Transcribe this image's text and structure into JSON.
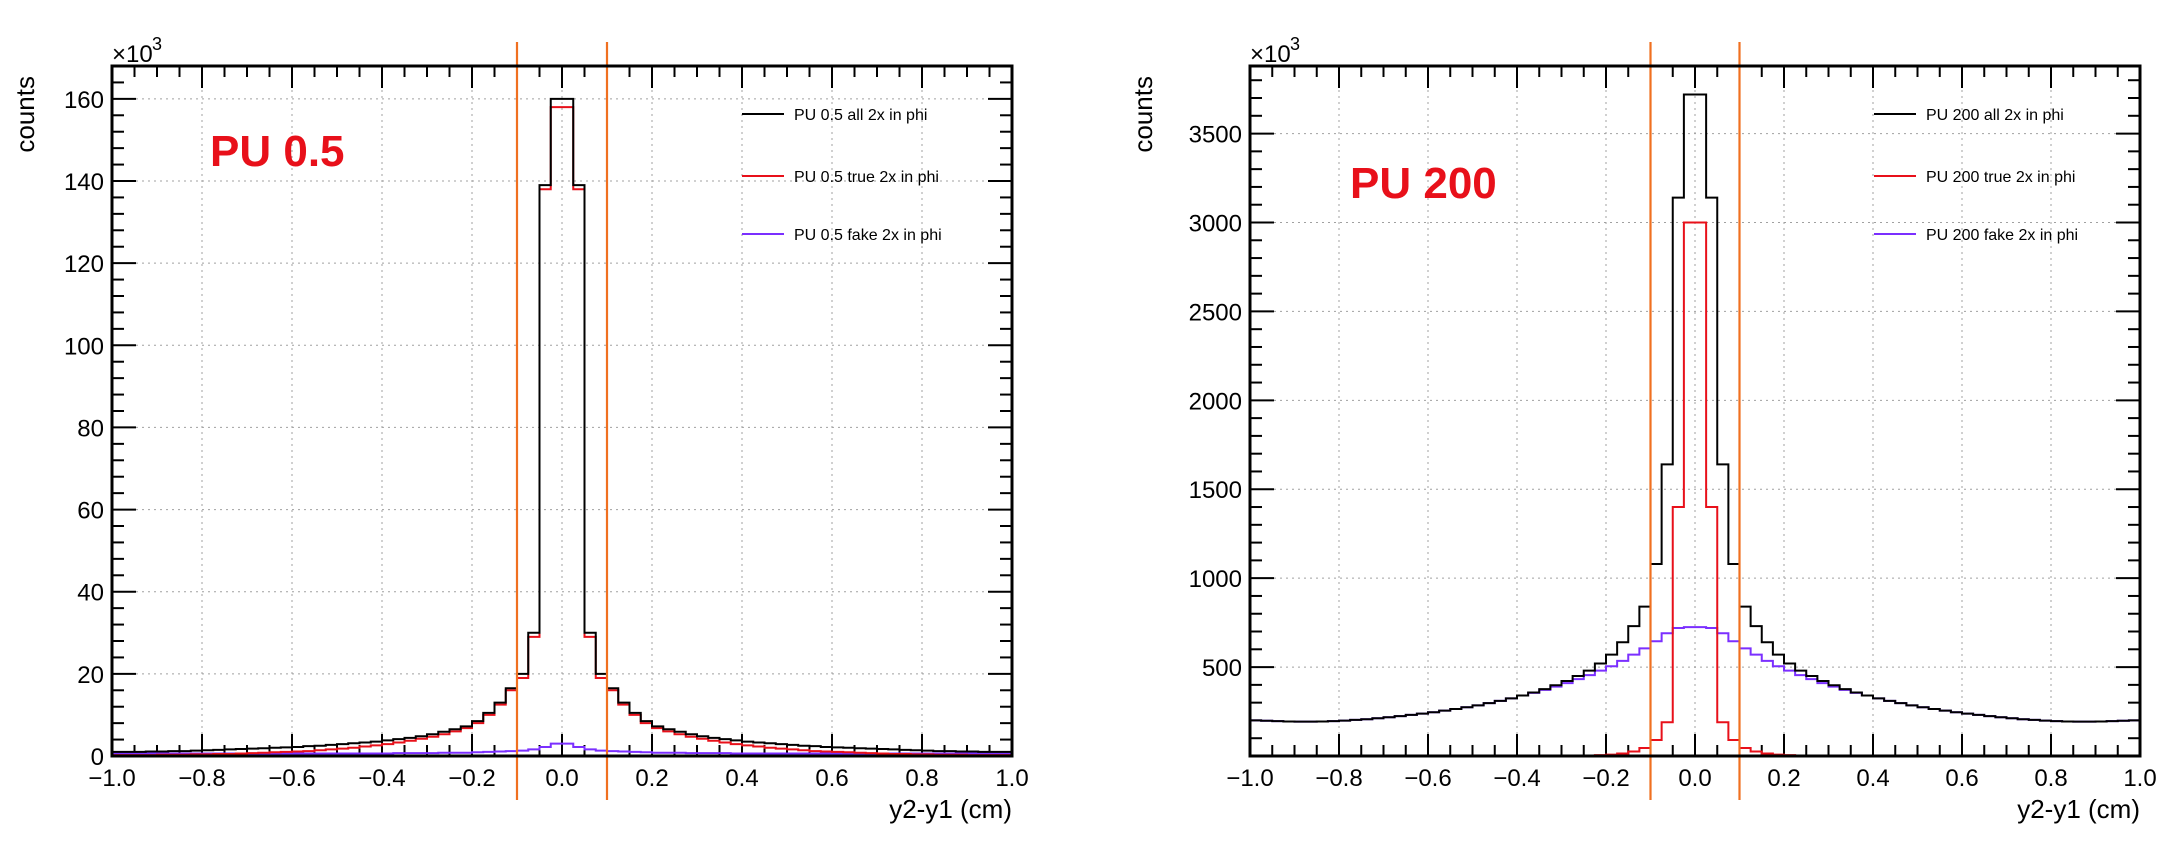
{
  "chart_data": [
    {
      "type": "histogram",
      "annotation": "PU 0.5",
      "ylabel": "counts",
      "xlabel": "y2-y1 (cm)",
      "y_multiplier": "×10",
      "y_multiplier_exp": "3",
      "xlim": [
        -1.0,
        1.0
      ],
      "ylim": [
        0,
        168
      ],
      "x_ticks": [
        "−1.0",
        "−0.8",
        "−0.6",
        "−0.4",
        "−0.2",
        "0.0",
        "0.2",
        "0.4",
        "0.6",
        "0.8",
        "1.0"
      ],
      "y_ticks": [
        {
          "value": 0,
          "label": "0"
        },
        {
          "value": 20,
          "label": "20"
        },
        {
          "value": 40,
          "label": "40"
        },
        {
          "value": 60,
          "label": "60"
        },
        {
          "value": 80,
          "label": "80"
        },
        {
          "value": 100,
          "label": "100"
        },
        {
          "value": 120,
          "label": "120"
        },
        {
          "value": 140,
          "label": "140"
        },
        {
          "value": 160,
          "label": "160"
        }
      ],
      "grid": true,
      "legend_position": "top-right",
      "cut_lines": [
        -0.1,
        0.1
      ],
      "bin_width": 0.025,
      "series": [
        {
          "name": "PU 0.5 all 2x in phi",
          "color": "#000000",
          "values": [
            1.0,
            1.0,
            1.0,
            1.1,
            1.1,
            1.2,
            1.2,
            1.3,
            1.4,
            1.5,
            1.6,
            1.7,
            1.8,
            1.9,
            2.0,
            2.1,
            2.2,
            2.4,
            2.5,
            2.7,
            2.9,
            3.1,
            3.3,
            3.5,
            3.8,
            4.1,
            4.4,
            4.8,
            5.3,
            5.9,
            6.5,
            7.2,
            8.5,
            10.5,
            13.0,
            16.5,
            20.0,
            30.0,
            139.0,
            160.0,
            160.0,
            139.0,
            30.0,
            20.0,
            16.5,
            13.0,
            10.5,
            8.5,
            7.2,
            6.5,
            5.9,
            5.3,
            4.8,
            4.4,
            4.1,
            3.8,
            3.5,
            3.3,
            3.1,
            2.9,
            2.7,
            2.5,
            2.4,
            2.2,
            2.1,
            2.0,
            1.9,
            1.8,
            1.7,
            1.6,
            1.5,
            1.4,
            1.3,
            1.2,
            1.2,
            1.1,
            1.1,
            1.0,
            1.0,
            1.0
          ]
        },
        {
          "name": "PU 0.5 true 2x in phi",
          "color": "#e8101a",
          "values": [
            0.2,
            0.2,
            0.2,
            0.2,
            0.3,
            0.3,
            0.3,
            0.4,
            0.4,
            0.5,
            0.5,
            0.6,
            0.7,
            0.8,
            0.9,
            1.0,
            1.1,
            1.2,
            1.4,
            1.6,
            1.8,
            2.0,
            2.3,
            2.6,
            2.9,
            3.3,
            3.7,
            4.2,
            4.7,
            5.3,
            6.0,
            6.8,
            8.0,
            10.0,
            12.5,
            16.0,
            19.0,
            29.0,
            138.0,
            158.0,
            158.0,
            138.0,
            29.0,
            19.0,
            16.0,
            12.5,
            10.0,
            8.0,
            6.8,
            6.0,
            5.3,
            4.7,
            4.2,
            3.7,
            3.3,
            2.9,
            2.6,
            2.3,
            2.0,
            1.8,
            1.6,
            1.4,
            1.2,
            1.1,
            1.0,
            0.9,
            0.8,
            0.7,
            0.6,
            0.5,
            0.5,
            0.4,
            0.4,
            0.3,
            0.3,
            0.3,
            0.2,
            0.2,
            0.2,
            0.2
          ]
        },
        {
          "name": "PU 0.5 fake 2x in phi",
          "color": "#7b2fff",
          "values": [
            0.6,
            0.6,
            0.6,
            0.6,
            0.6,
            0.6,
            0.6,
            0.6,
            0.6,
            0.6,
            0.6,
            0.6,
            0.6,
            0.6,
            0.6,
            0.6,
            0.6,
            0.6,
            0.6,
            0.6,
            0.6,
            0.6,
            0.6,
            0.6,
            0.6,
            0.7,
            0.7,
            0.7,
            0.7,
            0.8,
            0.8,
            0.8,
            0.9,
            1.0,
            1.1,
            1.2,
            1.3,
            1.6,
            2.2,
            3.0,
            3.0,
            2.2,
            1.6,
            1.3,
            1.2,
            1.1,
            1.0,
            0.9,
            0.8,
            0.8,
            0.8,
            0.7,
            0.7,
            0.7,
            0.7,
            0.6,
            0.6,
            0.6,
            0.6,
            0.6,
            0.6,
            0.6,
            0.6,
            0.6,
            0.6,
            0.6,
            0.6,
            0.6,
            0.6,
            0.6,
            0.6,
            0.6,
            0.6,
            0.6,
            0.6,
            0.6,
            0.6,
            0.6,
            0.6,
            0.6
          ]
        }
      ]
    },
    {
      "type": "histogram",
      "annotation": "PU 200",
      "ylabel": "counts",
      "xlabel": "y2-y1 (cm)",
      "y_multiplier": "×10",
      "y_multiplier_exp": "3",
      "xlim": [
        -1.0,
        1.0
      ],
      "ylim": [
        0,
        3880
      ],
      "x_ticks": [
        "−1.0",
        "−0.8",
        "−0.6",
        "−0.4",
        "−0.2",
        "0.0",
        "0.2",
        "0.4",
        "0.6",
        "0.8",
        "1.0"
      ],
      "y_ticks": [
        {
          "value": 500,
          "label": "500"
        },
        {
          "value": 1000,
          "label": "1000"
        },
        {
          "value": 1500,
          "label": "1500"
        },
        {
          "value": 2000,
          "label": "2000"
        },
        {
          "value": 2500,
          "label": "2500"
        },
        {
          "value": 3000,
          "label": "3000"
        },
        {
          "value": 3500,
          "label": "3500"
        }
      ],
      "grid": true,
      "legend_position": "top-right",
      "cut_lines": [
        -0.1,
        0.1
      ],
      "bin_width": 0.025,
      "series": [
        {
          "name": "PU 200 all 2x in phi",
          "color": "#000000",
          "values": [
            200,
            198,
            196,
            194,
            193,
            193,
            194,
            196,
            199,
            203,
            207,
            212,
            218,
            224,
            231,
            238,
            246,
            255,
            264,
            274,
            285,
            297,
            310,
            324,
            340,
            357,
            376,
            398,
            422,
            450,
            480,
            520,
            570,
            640,
            730,
            840,
            1080,
            1640,
            3140,
            3720,
            3720,
            3140,
            1640,
            1080,
            840,
            730,
            640,
            570,
            520,
            480,
            450,
            422,
            398,
            376,
            357,
            340,
            324,
            310,
            297,
            285,
            274,
            264,
            255,
            246,
            238,
            231,
            224,
            218,
            212,
            207,
            203,
            199,
            196,
            194,
            193,
            193,
            194,
            196,
            198,
            200
          ]
        },
        {
          "name": "PU 200 true 2x in phi",
          "color": "#e8101a",
          "values": [
            0,
            0,
            0,
            0,
            0,
            0,
            0,
            0,
            0,
            0,
            0,
            0,
            0,
            0,
            0,
            0,
            0,
            0,
            0,
            0,
            0,
            0,
            0,
            0,
            0,
            0,
            0,
            0,
            1,
            2,
            3,
            5,
            8,
            14,
            25,
            45,
            90,
            190,
            1400,
            3000,
            3000,
            1400,
            190,
            90,
            45,
            25,
            14,
            8,
            5,
            3,
            2,
            1,
            0,
            0,
            0,
            0,
            0,
            0,
            0,
            0,
            0,
            0,
            0,
            0,
            0,
            0,
            0,
            0,
            0,
            0,
            0,
            0,
            0,
            0,
            0,
            0,
            0,
            0,
            0,
            0
          ]
        },
        {
          "name": "PU 200 fake 2x in phi",
          "color": "#7b2fff",
          "values": [
            200,
            198,
            196,
            194,
            193,
            193,
            194,
            196,
            199,
            203,
            207,
            212,
            218,
            224,
            231,
            238,
            246,
            255,
            264,
            274,
            285,
            297,
            310,
            324,
            340,
            355,
            372,
            390,
            410,
            432,
            455,
            480,
            505,
            535,
            570,
            605,
            645,
            690,
            720,
            725,
            725,
            720,
            690,
            645,
            605,
            570,
            535,
            505,
            480,
            455,
            432,
            410,
            390,
            372,
            355,
            340,
            324,
            310,
            297,
            285,
            274,
            264,
            255,
            246,
            238,
            231,
            224,
            218,
            212,
            207,
            203,
            199,
            196,
            194,
            193,
            193,
            194,
            196,
            198,
            200
          ]
        }
      ]
    }
  ]
}
